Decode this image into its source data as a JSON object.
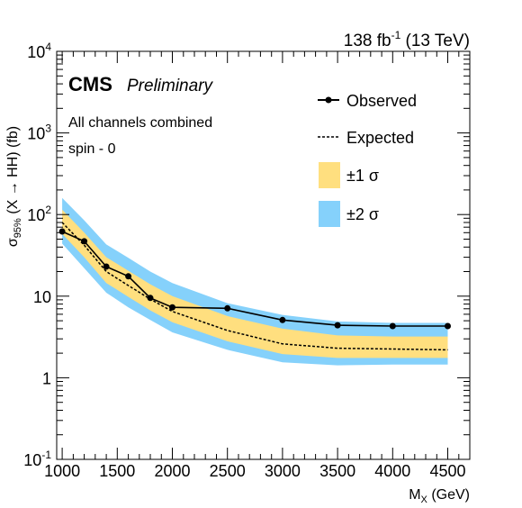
{
  "chart_data": {
    "type": "line",
    "lumi_label": "138 fb",
    "lumi_exp": "-1",
    "energy_label": " (13 TeV)",
    "experiment": "CMS",
    "status": "Preliminary",
    "annotation_lines": [
      "All channels combined",
      "spin - 0"
    ],
    "xlabel": "M",
    "xlabel_sub": "X",
    "xlabel_unit": " (GeV)",
    "ylabel_main": "σ",
    "ylabel_sub": "95%",
    "ylabel_rest": " (X → HH) (fb)",
    "y_scale": "log",
    "xlim": [
      950,
      4700
    ],
    "ylim": [
      0.1,
      10000
    ],
    "x_ticks": [
      1000,
      1500,
      2000,
      2500,
      3000,
      3500,
      4000,
      4500
    ],
    "y_tick_labels": [
      {
        "value": 0.1,
        "base": "10",
        "exp": "-1"
      },
      {
        "value": 1,
        "base": "1",
        "exp": ""
      },
      {
        "value": 10,
        "base": "10",
        "exp": ""
      },
      {
        "value": 100,
        "base": "10",
        "exp": "2"
      },
      {
        "value": 1000,
        "base": "10",
        "exp": "3"
      },
      {
        "value": 10000,
        "base": "10",
        "exp": "4"
      }
    ],
    "grid": false,
    "legend_position": "top-right",
    "legend": {
      "observed": "Observed",
      "expected": "Expected",
      "band1": "±1 σ",
      "band2": "±2 σ"
    },
    "colors": {
      "observed": "#000000",
      "expected": "#000000",
      "band1": "#ffdf7f",
      "band2": "#85d1fb"
    },
    "observed": {
      "x": [
        1000,
        1200,
        1400,
        1600,
        1800,
        2000,
        2500,
        3000,
        3500,
        4000,
        4500
      ],
      "y": [
        62,
        47,
        23,
        17.5,
        9.5,
        7.3,
        7.1,
        5.1,
        4.4,
        4.3,
        4.3
      ]
    },
    "expected": {
      "x": [
        1000,
        1200,
        1400,
        1600,
        1800,
        2000,
        2500,
        3000,
        3500,
        4000,
        4500
      ],
      "median": [
        80,
        42,
        20,
        13.5,
        9.2,
        6.5,
        3.8,
        2.6,
        2.3,
        2.25,
        2.2
      ],
      "minus1": [
        58,
        30,
        14.5,
        9.8,
        6.7,
        4.8,
        2.8,
        1.95,
        1.75,
        1.75,
        1.75
      ],
      "plus1": [
        115,
        60,
        30,
        20.5,
        14,
        10,
        5.7,
        4.0,
        3.3,
        3.2,
        3.2
      ],
      "minus2": [
        44,
        22,
        11,
        7.3,
        5.1,
        3.6,
        2.2,
        1.55,
        1.42,
        1.45,
        1.45
      ],
      "plus2": [
        160,
        85,
        43,
        29.5,
        20,
        14.5,
        8.2,
        5.9,
        4.9,
        4.7,
        4.7
      ]
    }
  }
}
